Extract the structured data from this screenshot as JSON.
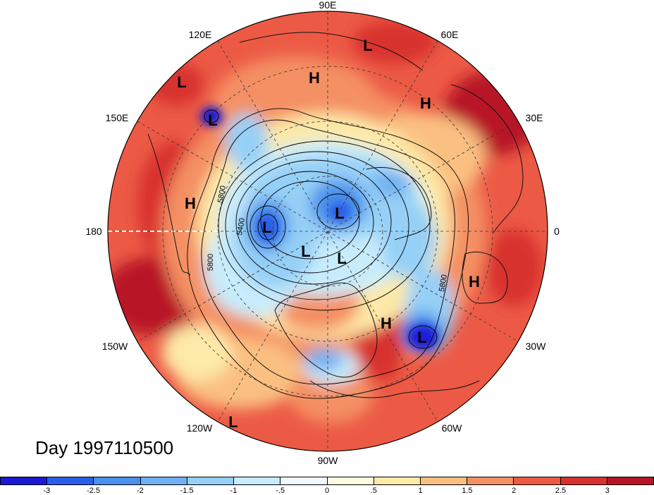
{
  "date_label": "Day 1997110500",
  "longitude_labels": [
    {
      "id": "lon-90e",
      "text": "90E"
    },
    {
      "id": "lon-60e",
      "text": "60E"
    },
    {
      "id": "lon-30e",
      "text": "30E"
    },
    {
      "id": "lon-0",
      "text": "0"
    },
    {
      "id": "lon-30w",
      "text": "30W"
    },
    {
      "id": "lon-60w",
      "text": "60W"
    },
    {
      "id": "lon-90w",
      "text": "90W"
    },
    {
      "id": "lon-120w",
      "text": "120W"
    },
    {
      "id": "lon-150w",
      "text": "150W"
    },
    {
      "id": "lon-180",
      "text": "180"
    },
    {
      "id": "lon-150e",
      "text": "150E"
    },
    {
      "id": "lon-120e",
      "text": "120E"
    }
  ],
  "pressure_markers": [
    "L",
    "H",
    "L",
    "H",
    "L",
    "H",
    "L",
    "L",
    "L",
    "L",
    "H",
    "H",
    "L",
    "L"
  ],
  "contour_labels": [
    "5800",
    "5400",
    "5800",
    "5800"
  ],
  "colorbar": {
    "colors": [
      "#1a1ad6",
      "#2b5ee8",
      "#4a90ec",
      "#6fb0f2",
      "#96d0f7",
      "#c8ecfb",
      "#eefaff",
      "#fffbe0",
      "#fde9a8",
      "#fac081",
      "#f49063",
      "#ec5a45",
      "#d8302f",
      "#b81326"
    ],
    "tick_labels": [
      "-3",
      "-2.5",
      "-2",
      "-1.5",
      "-1",
      "-.5",
      "0",
      ".5",
      "1",
      "1.5",
      "2",
      "2.5",
      "3"
    ]
  },
  "field_colors": {
    "deep_red": "#b81326",
    "red": "#d8302f",
    "light_red": "#ec5a45",
    "orange": "#f49063",
    "pale_orange": "#fac081",
    "cream": "#fde9a8",
    "pale_blue": "#c8ecfb",
    "light_blue": "#96d0f7",
    "blue": "#4a90ec",
    "deep_blue": "#1a1ad6"
  }
}
